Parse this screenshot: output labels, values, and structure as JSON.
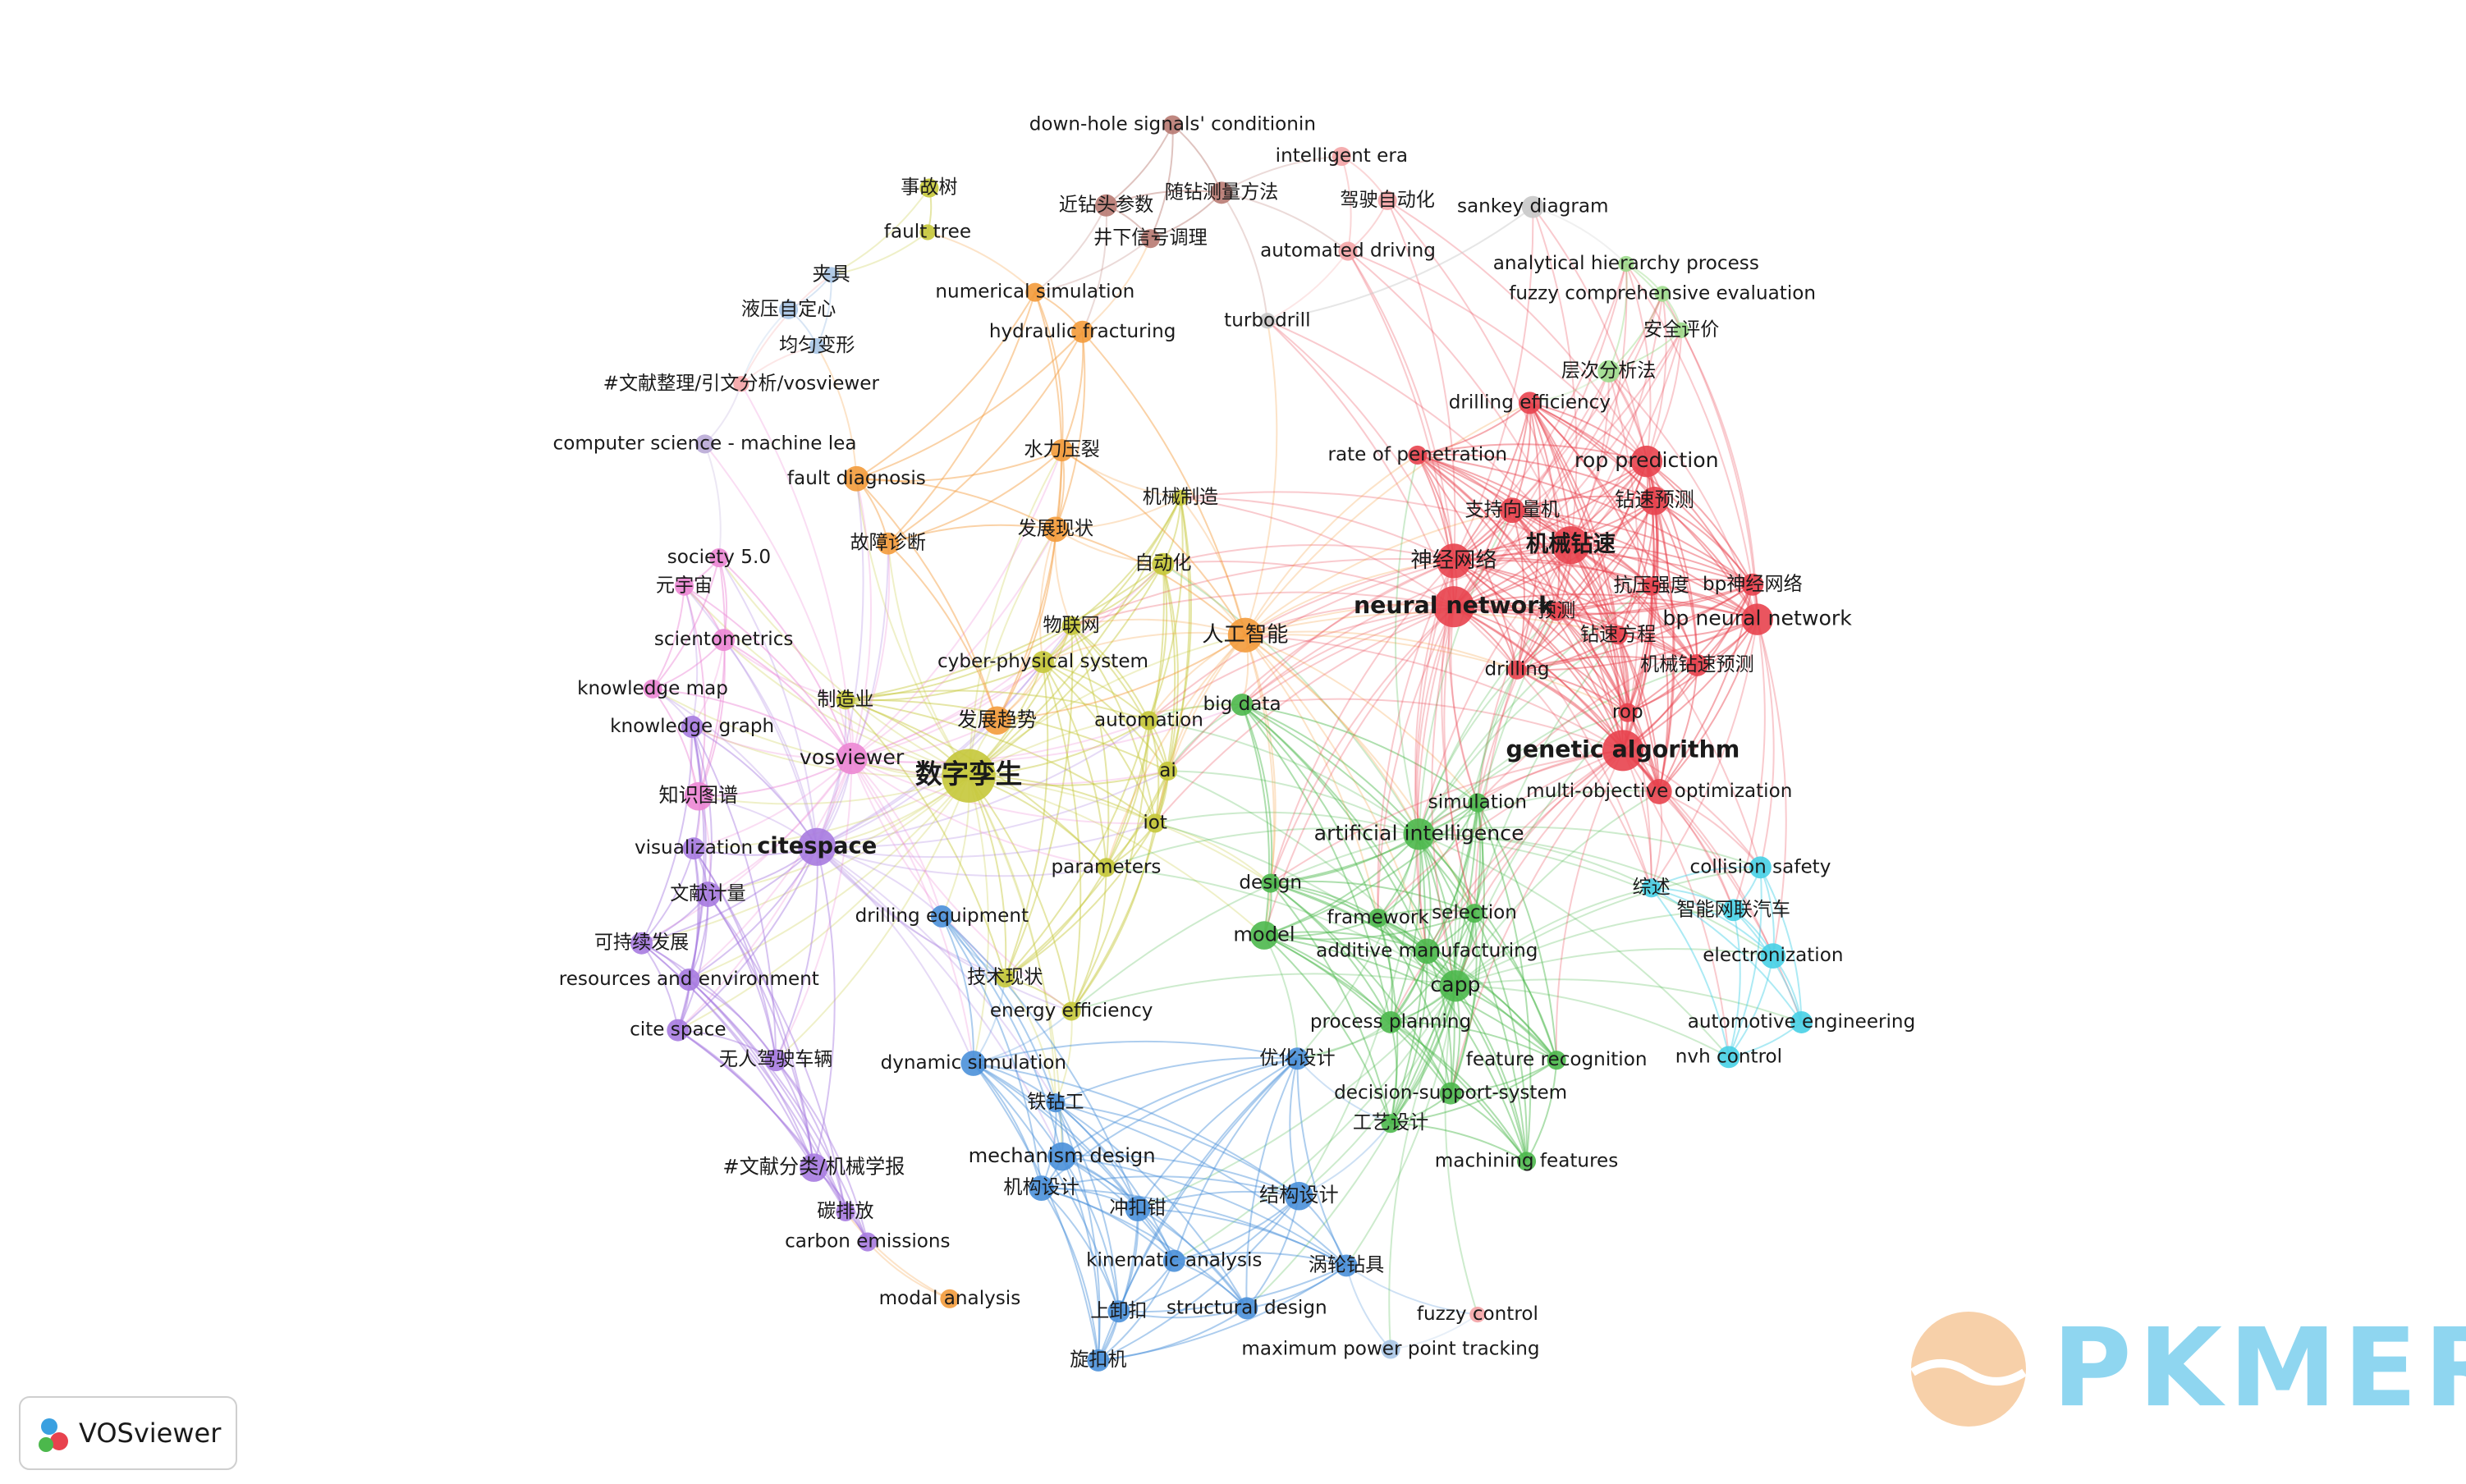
{
  "clusters": [
    {
      "color": "#b87a72",
      "nodes": [
        "down-hole signals' conditionin",
        "近钻头参数",
        "随钻测量方法",
        "井下信号调理"
      ]
    },
    {
      "color": "#f4a4a6",
      "nodes": [
        "intelligent era",
        "驾驶自动化",
        "automated driving",
        "fuzzy control",
        "#文献整理/引文分析/vosviewer"
      ]
    },
    {
      "color": "#c8c8c8",
      "nodes": [
        "sankey diagram",
        "turbodrill"
      ]
    },
    {
      "color": "#c5c83a",
      "nodes": [
        "事故树",
        "fault tree",
        "机械制造",
        "自动化",
        "物联网",
        "cyber-physical system",
        "制造业",
        "automation",
        "ai",
        "数字孪生",
        "iot",
        "parameters",
        "技术现状",
        "energy efficiency"
      ]
    },
    {
      "color": "#a9c5e6",
      "nodes": [
        "夹具",
        "液压自定心",
        "均匀变形",
        "maximum power point tracking"
      ]
    },
    {
      "color": "#b9aad6",
      "nodes": [
        "computer science - machine lea"
      ]
    },
    {
      "color": "#f39b3b",
      "nodes": [
        "numerical simulation",
        "hydraulic fracturing",
        "水力压裂",
        "fault diagnosis",
        "故障诊断",
        "发展现状",
        "人工智能",
        "发展趋势",
        "modal analysis"
      ]
    },
    {
      "color": "#4cb84c",
      "nodes": [
        "big data",
        "artificial intelligence",
        "simulation",
        "design",
        "framework",
        "selection",
        "model",
        "additive manufacturing",
        "capp",
        "process planning",
        "feature recognition",
        "decision-support-system",
        "工艺设计",
        "machining features"
      ]
    },
    {
      "color": "#9ddc8c",
      "nodes": [
        "analytical hierarchy process",
        "fuzzy comprehensive evaluation",
        "安全评价",
        "层次分析法"
      ]
    },
    {
      "color": "#e8424e",
      "nodes": [
        "drilling efficiency",
        "rate of penetration",
        "rop prediction",
        "支持向量机",
        "钻速预测",
        "神经网络",
        "机械钻速",
        "抗压强度",
        "bp神经网络",
        "neural network",
        "预测",
        "bp neural network",
        "钻速方程",
        "drilling",
        "机械钻速预测",
        "rop",
        "genetic algorithm",
        "multi-objective optimization"
      ]
    },
    {
      "color": "#47d0e6",
      "nodes": [
        "综述",
        "collision safety",
        "智能网联汽车",
        "electronization",
        "automotive engineering",
        "nvh control"
      ]
    },
    {
      "color": "#ec86d4",
      "nodes": [
        "society 5.0",
        "元宇宙",
        "scientometrics",
        "knowledge map",
        "vosviewer",
        "知识图谱"
      ]
    },
    {
      "color": "#a77be0",
      "nodes": [
        "knowledge graph",
        "citespace",
        "visualization",
        "文献计量",
        "可持续发展",
        "resources and environment",
        "cite space",
        "无人驾驶车辆",
        "#文献分类/机械学报",
        "碳排放",
        "carbon emissions"
      ]
    },
    {
      "color": "#4a90d9",
      "nodes": [
        "drilling equipment",
        "dynamic simulation",
        "铁钻工",
        "mechanism design",
        "机构设计",
        "冲扣钳",
        "结构设计",
        "kinematic analysis",
        "涡轮钻具",
        "structural design",
        "上卸扣",
        "旋扣机",
        "优化设计"
      ]
    }
  ],
  "watermark": "PKMER",
  "logo": "VOSviewer"
}
